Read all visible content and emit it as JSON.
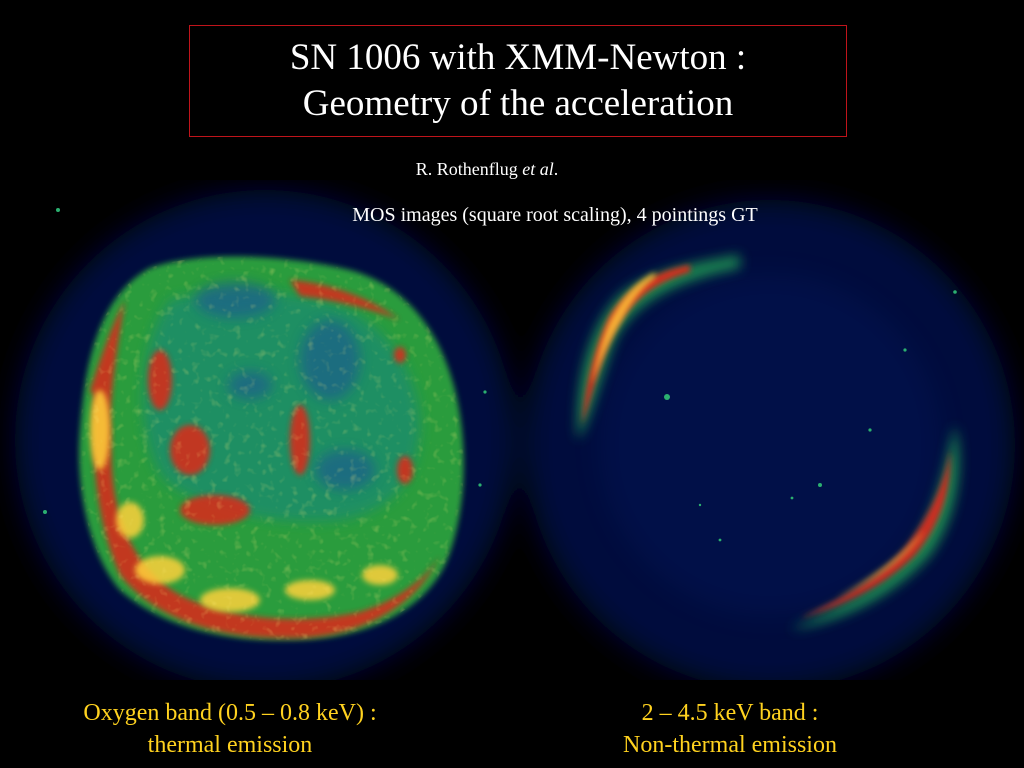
{
  "slide": {
    "title_line1": "SN 1006 with XMM-Newton :",
    "title_line2": "Geometry of the acceleration",
    "author_name": "R. Rothenflug",
    "author_etal": "et al",
    "author_period": ".",
    "subtitle": "MOS images (square root scaling), 4 pointings GT",
    "caption_left_line1": "Oxygen band (0.5 – 0.8 keV) :",
    "caption_left_line2": "thermal emission",
    "caption_right_line1": "2 – 4.5 keV band :",
    "caption_right_line2": "Non-thermal emission"
  },
  "colors": {
    "background": "#000000",
    "title_border": "#c0141b",
    "caption": "#ffd21f",
    "map_low": "#0a1460",
    "map_mid": "#1fa050",
    "map_high": "#d8321a",
    "map_peak": "#ffd83a"
  }
}
